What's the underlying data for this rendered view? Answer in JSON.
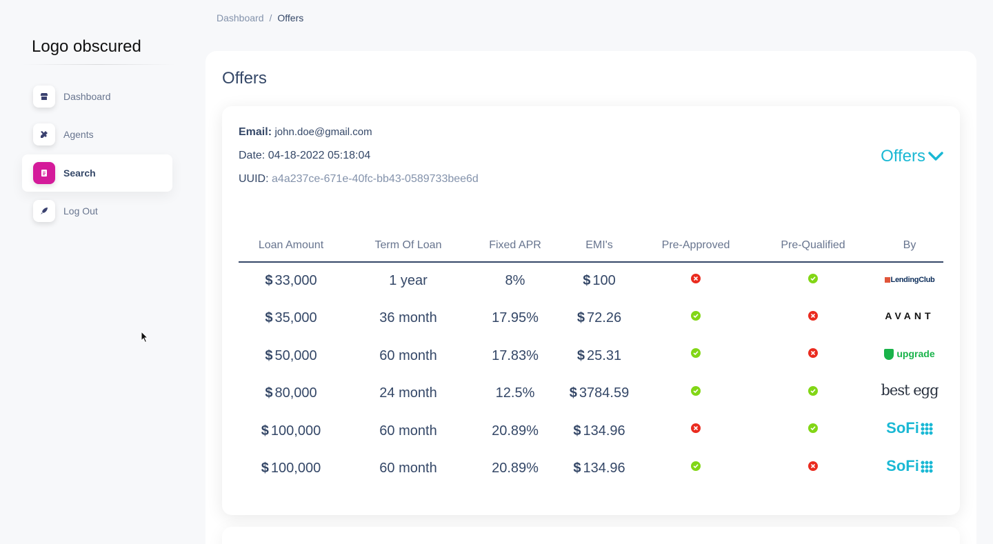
{
  "sidebar": {
    "logo": "Logo obscured",
    "items": [
      {
        "label": "Dashboard",
        "icon": "shop-icon",
        "active": false
      },
      {
        "label": "Agents",
        "icon": "tools-icon",
        "active": false
      },
      {
        "label": "Search",
        "icon": "document-icon",
        "active": true
      },
      {
        "label": "Log Out",
        "icon": "rocket-icon",
        "active": false
      }
    ]
  },
  "breadcrumb": {
    "parent": "Dashboard",
    "separator": "/",
    "current": "Offers"
  },
  "main": {
    "title": "Offers",
    "card": {
      "email_label": "Email:",
      "email": "john.doe@gmail.com",
      "date_label": "Date:",
      "date": "04-18-2022 05:18:04",
      "uuid_label": "UUID:",
      "uuid": "a4a237ce-671e-40fc-bb43-0589733bee6d",
      "toggle_label": "Offers",
      "columns": [
        "Loan Amount",
        "Term Of Loan",
        "Fixed APR",
        "EMI's",
        "Pre-Approved",
        "Pre-Qualified",
        "By"
      ],
      "currency_symbol": "$",
      "rows": [
        {
          "amount": "33,000",
          "term": "1 year",
          "apr": "8%",
          "emi": "100",
          "pre_approved": false,
          "pre_qualified": true,
          "lender": "LendingClub"
        },
        {
          "amount": "35,000",
          "term": "36 month",
          "apr": "17.95%",
          "emi": "72.26",
          "pre_approved": true,
          "pre_qualified": false,
          "lender": "AVANT"
        },
        {
          "amount": "50,000",
          "term": "60 month",
          "apr": "17.83%",
          "emi": "25.31",
          "pre_approved": true,
          "pre_qualified": false,
          "lender": "upgrade"
        },
        {
          "amount": "80,000",
          "term": "24 month",
          "apr": "12.5%",
          "emi": "3784.59",
          "pre_approved": true,
          "pre_qualified": true,
          "lender": "best egg"
        },
        {
          "amount": "100,000",
          "term": "60 month",
          "apr": "20.89%",
          "emi": "134.96",
          "pre_approved": false,
          "pre_qualified": true,
          "lender": "SoFi"
        },
        {
          "amount": "100,000",
          "term": "60 month",
          "apr": "20.89%",
          "emi": "134.96",
          "pre_approved": true,
          "pre_qualified": false,
          "lender": "SoFi"
        }
      ]
    }
  },
  "colors": {
    "accent": "#d41b9a",
    "toggle": "#1ab8d4",
    "yes": "#82d616",
    "no": "#ea2b1f",
    "text": "#344767"
  }
}
